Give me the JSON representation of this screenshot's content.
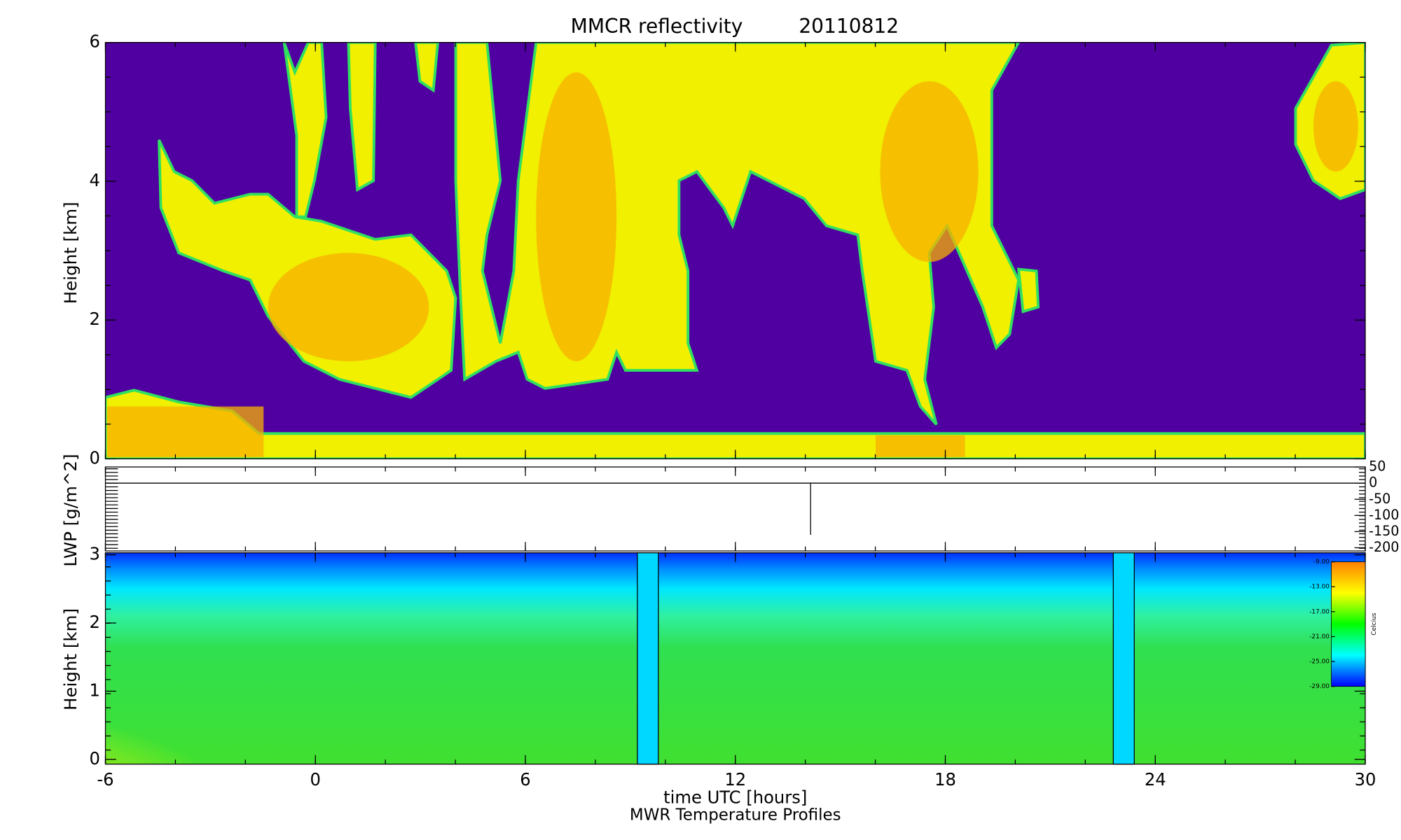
{
  "chart_data": [
    {
      "type": "heatmap",
      "title": "MMCR reflectivity",
      "subtitle": "20110812",
      "ylabel": "Height [km]",
      "xlim": [
        -6,
        30
      ],
      "xticks": [
        -6,
        0,
        6,
        12,
        18,
        24,
        30
      ],
      "ylim": [
        0,
        6
      ],
      "yticks": [
        0,
        2,
        4,
        6
      ]
    },
    {
      "type": "line",
      "ylabel": "LWP [g/m^2]",
      "color": "#000000",
      "x": [
        -6,
        14.15,
        14.15,
        14.15,
        30
      ],
      "values": [
        0,
        0,
        -160,
        0,
        0
      ],
      "y2lim": [
        -210,
        50
      ],
      "y2ticks": [
        50,
        0,
        -50,
        -100,
        -150,
        -200
      ]
    },
    {
      "type": "contour",
      "title": "MWR Temperature Profiles",
      "xlabel": "time UTC [hours]",
      "ylabel": "Height [km]",
      "ylim": [
        -0.07,
        3.03
      ],
      "yticks": [
        0,
        1,
        2,
        3
      ],
      "gaps": [
        [
          9.2,
          9.8
        ],
        [
          22.8,
          23.4
        ]
      ],
      "colorbar": {
        "label": "Celcius",
        "lim": [
          -29,
          -9
        ],
        "colors": [
          "#0000ff",
          "#00ffff",
          "#00ff00",
          "#ffff00",
          "#ff8000"
        ],
        "ticks": [
          {
            "value": -9,
            "label": "-9.00"
          },
          {
            "value": -13,
            "label": "-13.00"
          },
          {
            "value": -17,
            "label": "-17.00"
          },
          {
            "value": -21,
            "label": "-21.00"
          },
          {
            "value": -25,
            "label": "-25.00"
          },
          {
            "value": -29,
            "label": "-29.00"
          }
        ]
      }
    }
  ]
}
